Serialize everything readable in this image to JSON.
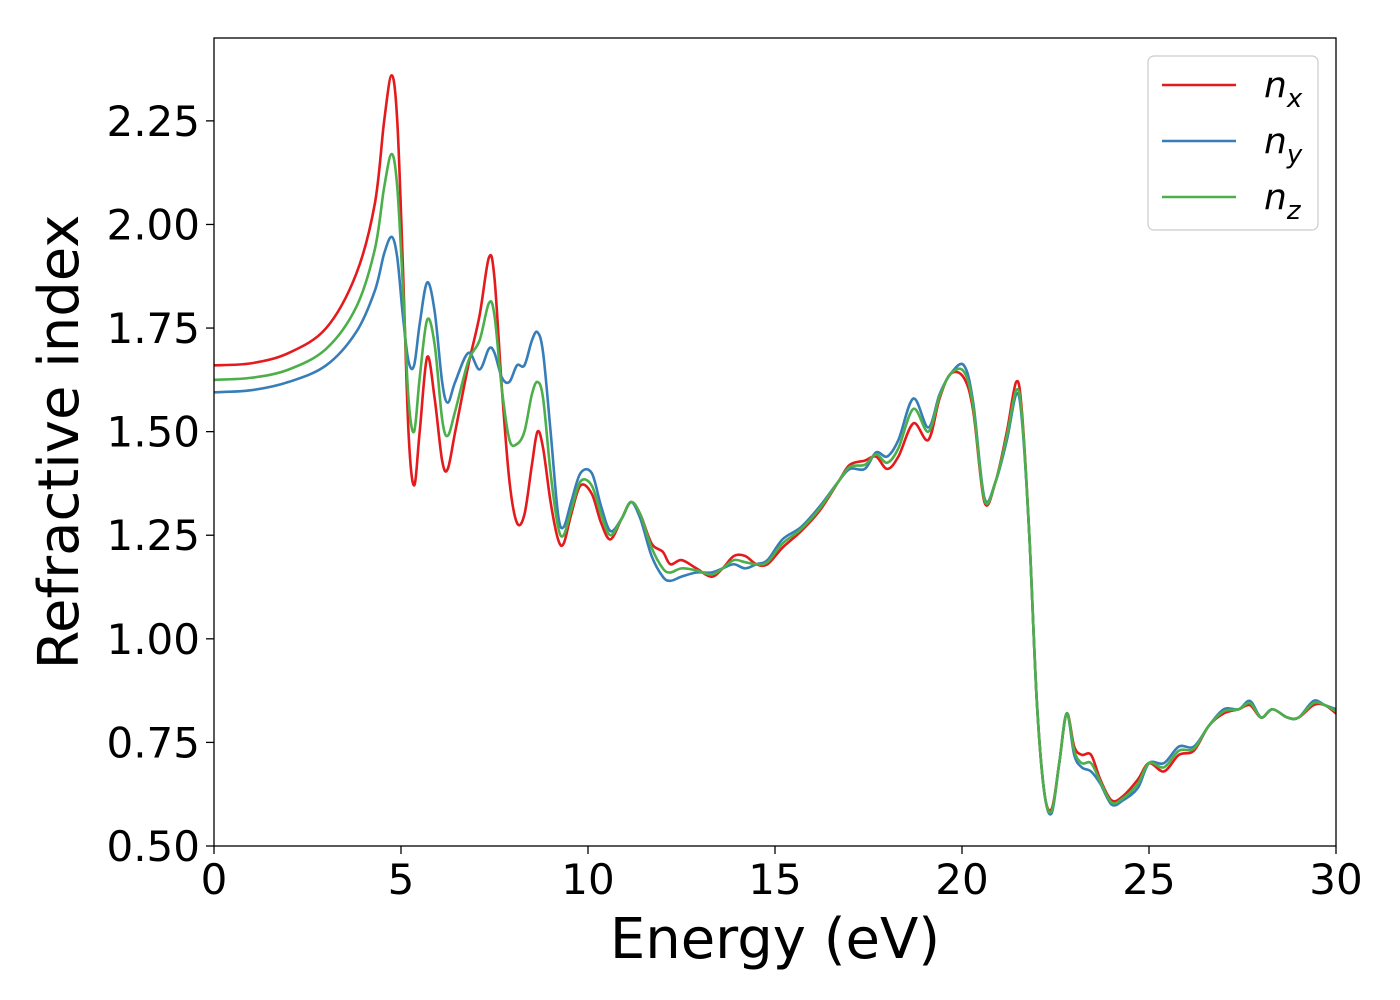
{
  "chart_data": {
    "type": "line",
    "title": "",
    "xlabel": "Energy (eV)",
    "ylabel": "Refractive index",
    "xlim": [
      0,
      30
    ],
    "ylim": [
      0.5,
      2.45
    ],
    "x_ticks": [
      0,
      5,
      10,
      15,
      20,
      25,
      30
    ],
    "x_tick_labels": [
      "0",
      "5",
      "10",
      "15",
      "20",
      "25",
      "30"
    ],
    "y_ticks": [
      0.5,
      0.75,
      1.0,
      1.25,
      1.5,
      1.75,
      2.0,
      2.25
    ],
    "y_tick_labels": [
      "0.50",
      "0.75",
      "1.00",
      "1.25",
      "1.50",
      "1.75",
      "2.00",
      "2.25"
    ],
    "grid": false,
    "legend_position": "top-right",
    "series": [
      {
        "name": "n",
        "subscript": "x",
        "color": "#e41a1c",
        "points": [
          [
            0,
            1.66
          ],
          [
            1,
            1.665
          ],
          [
            2,
            1.69
          ],
          [
            3,
            1.75
          ],
          [
            3.8,
            1.88
          ],
          [
            4.3,
            2.05
          ],
          [
            4.55,
            2.25
          ],
          [
            4.75,
            2.36
          ],
          [
            4.9,
            2.25
          ],
          [
            5.05,
            1.9
          ],
          [
            5.2,
            1.5
          ],
          [
            5.35,
            1.37
          ],
          [
            5.5,
            1.5
          ],
          [
            5.7,
            1.68
          ],
          [
            5.9,
            1.58
          ],
          [
            6.1,
            1.43
          ],
          [
            6.25,
            1.41
          ],
          [
            6.45,
            1.5
          ],
          [
            6.8,
            1.66
          ],
          [
            7.1,
            1.78
          ],
          [
            7.35,
            1.92
          ],
          [
            7.5,
            1.87
          ],
          [
            7.7,
            1.6
          ],
          [
            7.9,
            1.38
          ],
          [
            8.1,
            1.28
          ],
          [
            8.3,
            1.3
          ],
          [
            8.5,
            1.42
          ],
          [
            8.65,
            1.5
          ],
          [
            8.8,
            1.46
          ],
          [
            9.0,
            1.33
          ],
          [
            9.2,
            1.24
          ],
          [
            9.35,
            1.23
          ],
          [
            9.55,
            1.3
          ],
          [
            9.8,
            1.37
          ],
          [
            10.1,
            1.35
          ],
          [
            10.35,
            1.28
          ],
          [
            10.6,
            1.24
          ],
          [
            10.9,
            1.29
          ],
          [
            11.15,
            1.33
          ],
          [
            11.4,
            1.3
          ],
          [
            11.7,
            1.23
          ],
          [
            12.0,
            1.21
          ],
          [
            12.2,
            1.18
          ],
          [
            12.5,
            1.19
          ],
          [
            12.9,
            1.17
          ],
          [
            13.3,
            1.15
          ],
          [
            13.6,
            1.17
          ],
          [
            13.9,
            1.2
          ],
          [
            14.2,
            1.2
          ],
          [
            14.5,
            1.18
          ],
          [
            14.8,
            1.18
          ],
          [
            15.2,
            1.22
          ],
          [
            15.7,
            1.26
          ],
          [
            16.2,
            1.31
          ],
          [
            16.7,
            1.38
          ],
          [
            17.0,
            1.42
          ],
          [
            17.4,
            1.43
          ],
          [
            17.7,
            1.44
          ],
          [
            18.0,
            1.41
          ],
          [
            18.3,
            1.44
          ],
          [
            18.7,
            1.52
          ],
          [
            19.1,
            1.48
          ],
          [
            19.4,
            1.58
          ],
          [
            19.7,
            1.64
          ],
          [
            20.05,
            1.63
          ],
          [
            20.3,
            1.55
          ],
          [
            20.6,
            1.33
          ],
          [
            20.9,
            1.38
          ],
          [
            21.2,
            1.5
          ],
          [
            21.45,
            1.62
          ],
          [
            21.6,
            1.55
          ],
          [
            21.8,
            1.25
          ],
          [
            22.0,
            0.85
          ],
          [
            22.2,
            0.63
          ],
          [
            22.4,
            0.59
          ],
          [
            22.6,
            0.7
          ],
          [
            22.8,
            0.82
          ],
          [
            23.0,
            0.74
          ],
          [
            23.2,
            0.72
          ],
          [
            23.45,
            0.72
          ],
          [
            23.7,
            0.66
          ],
          [
            24.0,
            0.61
          ],
          [
            24.3,
            0.62
          ],
          [
            24.7,
            0.66
          ],
          [
            25.0,
            0.7
          ],
          [
            25.4,
            0.68
          ],
          [
            25.8,
            0.72
          ],
          [
            26.2,
            0.73
          ],
          [
            26.6,
            0.79
          ],
          [
            27.0,
            0.82
          ],
          [
            27.4,
            0.83
          ],
          [
            27.7,
            0.84
          ],
          [
            28.0,
            0.81
          ],
          [
            28.3,
            0.83
          ],
          [
            28.7,
            0.81
          ],
          [
            29.0,
            0.81
          ],
          [
            29.4,
            0.84
          ],
          [
            29.7,
            0.84
          ],
          [
            30,
            0.82
          ]
        ]
      },
      {
        "name": "n",
        "subscript": "y",
        "color": "#377eb8",
        "points": [
          [
            0,
            1.595
          ],
          [
            1,
            1.6
          ],
          [
            2,
            1.62
          ],
          [
            3,
            1.66
          ],
          [
            3.8,
            1.74
          ],
          [
            4.3,
            1.84
          ],
          [
            4.55,
            1.93
          ],
          [
            4.75,
            1.97
          ],
          [
            4.9,
            1.92
          ],
          [
            5.05,
            1.78
          ],
          [
            5.2,
            1.67
          ],
          [
            5.35,
            1.66
          ],
          [
            5.5,
            1.76
          ],
          [
            5.7,
            1.86
          ],
          [
            5.9,
            1.79
          ],
          [
            6.1,
            1.62
          ],
          [
            6.25,
            1.57
          ],
          [
            6.45,
            1.62
          ],
          [
            6.8,
            1.69
          ],
          [
            7.1,
            1.65
          ],
          [
            7.35,
            1.7
          ],
          [
            7.5,
            1.69
          ],
          [
            7.7,
            1.63
          ],
          [
            7.9,
            1.62
          ],
          [
            8.1,
            1.66
          ],
          [
            8.3,
            1.66
          ],
          [
            8.5,
            1.72
          ],
          [
            8.65,
            1.74
          ],
          [
            8.8,
            1.69
          ],
          [
            9.0,
            1.5
          ],
          [
            9.2,
            1.3
          ],
          [
            9.35,
            1.27
          ],
          [
            9.55,
            1.33
          ],
          [
            9.8,
            1.4
          ],
          [
            10.1,
            1.4
          ],
          [
            10.35,
            1.32
          ],
          [
            10.6,
            1.26
          ],
          [
            10.9,
            1.29
          ],
          [
            11.15,
            1.33
          ],
          [
            11.4,
            1.29
          ],
          [
            11.7,
            1.2
          ],
          [
            12.0,
            1.15
          ],
          [
            12.2,
            1.14
          ],
          [
            12.5,
            1.15
          ],
          [
            12.9,
            1.16
          ],
          [
            13.3,
            1.16
          ],
          [
            13.6,
            1.17
          ],
          [
            13.9,
            1.18
          ],
          [
            14.2,
            1.17
          ],
          [
            14.5,
            1.18
          ],
          [
            14.8,
            1.19
          ],
          [
            15.2,
            1.24
          ],
          [
            15.7,
            1.27
          ],
          [
            16.2,
            1.32
          ],
          [
            16.7,
            1.38
          ],
          [
            17.0,
            1.41
          ],
          [
            17.4,
            1.41
          ],
          [
            17.7,
            1.45
          ],
          [
            18.0,
            1.44
          ],
          [
            18.3,
            1.48
          ],
          [
            18.7,
            1.58
          ],
          [
            19.1,
            1.51
          ],
          [
            19.4,
            1.59
          ],
          [
            19.7,
            1.64
          ],
          [
            20.05,
            1.66
          ],
          [
            20.3,
            1.57
          ],
          [
            20.6,
            1.34
          ],
          [
            20.9,
            1.38
          ],
          [
            21.2,
            1.48
          ],
          [
            21.45,
            1.59
          ],
          [
            21.6,
            1.53
          ],
          [
            21.8,
            1.25
          ],
          [
            22.0,
            0.85
          ],
          [
            22.2,
            0.63
          ],
          [
            22.4,
            0.58
          ],
          [
            22.6,
            0.7
          ],
          [
            22.8,
            0.82
          ],
          [
            23.0,
            0.72
          ],
          [
            23.2,
            0.69
          ],
          [
            23.45,
            0.68
          ],
          [
            23.7,
            0.65
          ],
          [
            24.0,
            0.6
          ],
          [
            24.3,
            0.61
          ],
          [
            24.7,
            0.64
          ],
          [
            25.0,
            0.7
          ],
          [
            25.4,
            0.7
          ],
          [
            25.8,
            0.74
          ],
          [
            26.2,
            0.74
          ],
          [
            26.6,
            0.79
          ],
          [
            27.0,
            0.83
          ],
          [
            27.4,
            0.83
          ],
          [
            27.7,
            0.85
          ],
          [
            28.0,
            0.81
          ],
          [
            28.3,
            0.83
          ],
          [
            28.7,
            0.81
          ],
          [
            29.0,
            0.81
          ],
          [
            29.4,
            0.85
          ],
          [
            29.7,
            0.84
          ],
          [
            30,
            0.83
          ]
        ]
      },
      {
        "name": "n",
        "subscript": "z",
        "color": "#4daf4a",
        "points": [
          [
            0,
            1.625
          ],
          [
            1,
            1.63
          ],
          [
            2,
            1.65
          ],
          [
            3,
            1.7
          ],
          [
            3.8,
            1.8
          ],
          [
            4.3,
            1.94
          ],
          [
            4.55,
            2.09
          ],
          [
            4.75,
            2.17
          ],
          [
            4.9,
            2.09
          ],
          [
            5.05,
            1.85
          ],
          [
            5.2,
            1.58
          ],
          [
            5.35,
            1.5
          ],
          [
            5.5,
            1.63
          ],
          [
            5.7,
            1.77
          ],
          [
            5.9,
            1.71
          ],
          [
            6.1,
            1.53
          ],
          [
            6.25,
            1.49
          ],
          [
            6.45,
            1.55
          ],
          [
            6.8,
            1.67
          ],
          [
            7.1,
            1.72
          ],
          [
            7.35,
            1.81
          ],
          [
            7.5,
            1.78
          ],
          [
            7.7,
            1.6
          ],
          [
            7.9,
            1.48
          ],
          [
            8.1,
            1.47
          ],
          [
            8.3,
            1.5
          ],
          [
            8.5,
            1.59
          ],
          [
            8.65,
            1.62
          ],
          [
            8.8,
            1.58
          ],
          [
            9.0,
            1.4
          ],
          [
            9.2,
            1.27
          ],
          [
            9.35,
            1.25
          ],
          [
            9.55,
            1.31
          ],
          [
            9.8,
            1.38
          ],
          [
            10.1,
            1.37
          ],
          [
            10.35,
            1.3
          ],
          [
            10.6,
            1.25
          ],
          [
            10.9,
            1.29
          ],
          [
            11.15,
            1.33
          ],
          [
            11.4,
            1.3
          ],
          [
            11.7,
            1.22
          ],
          [
            12.0,
            1.17
          ],
          [
            12.2,
            1.16
          ],
          [
            12.5,
            1.17
          ],
          [
            12.9,
            1.165
          ],
          [
            13.3,
            1.155
          ],
          [
            13.6,
            1.17
          ],
          [
            13.9,
            1.19
          ],
          [
            14.2,
            1.185
          ],
          [
            14.5,
            1.18
          ],
          [
            14.8,
            1.185
          ],
          [
            15.2,
            1.23
          ],
          [
            15.7,
            1.265
          ],
          [
            16.2,
            1.315
          ],
          [
            16.7,
            1.38
          ],
          [
            17.0,
            1.415
          ],
          [
            17.4,
            1.42
          ],
          [
            17.7,
            1.445
          ],
          [
            18.0,
            1.425
          ],
          [
            18.3,
            1.46
          ],
          [
            18.7,
            1.555
          ],
          [
            19.1,
            1.5
          ],
          [
            19.4,
            1.585
          ],
          [
            19.7,
            1.64
          ],
          [
            20.05,
            1.645
          ],
          [
            20.3,
            1.56
          ],
          [
            20.6,
            1.335
          ],
          [
            20.9,
            1.38
          ],
          [
            21.2,
            1.49
          ],
          [
            21.45,
            1.6
          ],
          [
            21.6,
            1.54
          ],
          [
            21.8,
            1.25
          ],
          [
            22.0,
            0.85
          ],
          [
            22.2,
            0.63
          ],
          [
            22.4,
            0.585
          ],
          [
            22.6,
            0.7
          ],
          [
            22.8,
            0.82
          ],
          [
            23.0,
            0.73
          ],
          [
            23.2,
            0.7
          ],
          [
            23.45,
            0.7
          ],
          [
            23.7,
            0.655
          ],
          [
            24.0,
            0.605
          ],
          [
            24.3,
            0.615
          ],
          [
            24.7,
            0.65
          ],
          [
            25.0,
            0.7
          ],
          [
            25.4,
            0.69
          ],
          [
            25.8,
            0.73
          ],
          [
            26.2,
            0.735
          ],
          [
            26.6,
            0.79
          ],
          [
            27.0,
            0.825
          ],
          [
            27.4,
            0.83
          ],
          [
            27.7,
            0.845
          ],
          [
            28.0,
            0.81
          ],
          [
            28.3,
            0.83
          ],
          [
            28.7,
            0.81
          ],
          [
            29.0,
            0.81
          ],
          [
            29.4,
            0.845
          ],
          [
            29.7,
            0.84
          ],
          [
            30,
            0.825
          ]
        ]
      }
    ]
  }
}
